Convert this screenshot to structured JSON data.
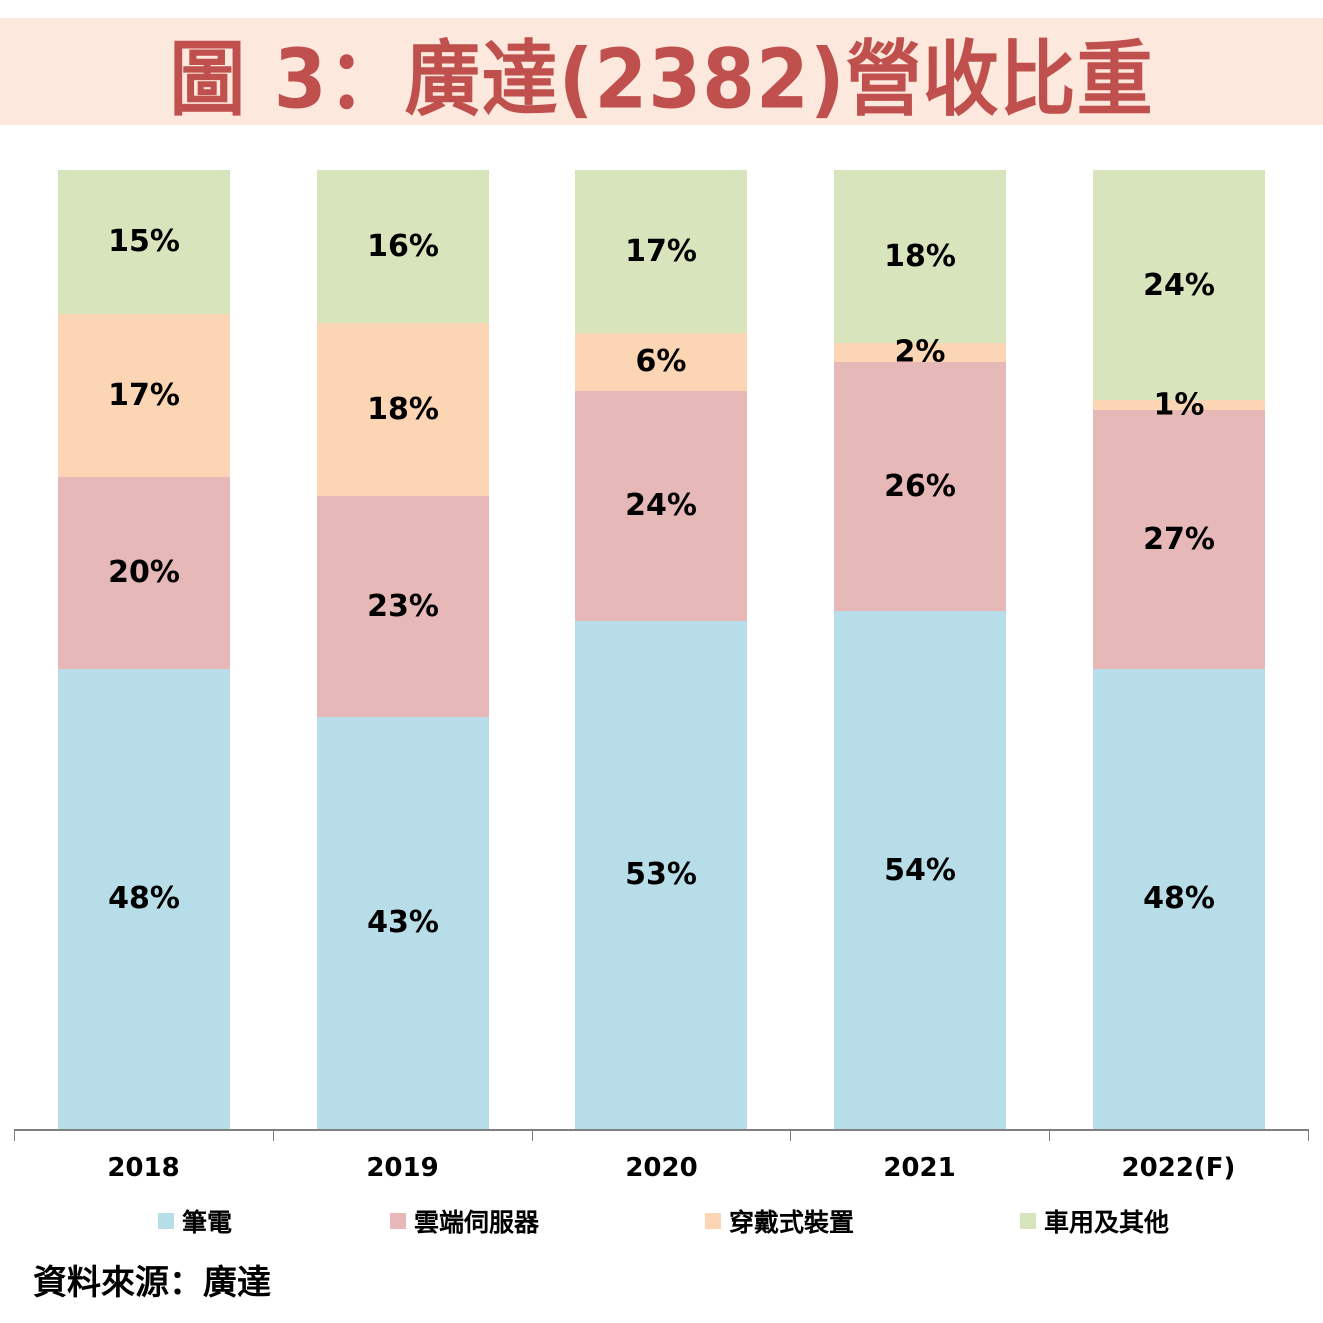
{
  "title": "圖 3：廣達(2382)營收比重",
  "source": "資料來源：廣達",
  "colors": {
    "title": "#c0504d",
    "title_band": "#fce8dc",
    "筆電": "#b7dde8",
    "雲端伺服器": "#e6b8b7",
    "穿戴式裝置": "#fcd5b4",
    "車用及其他": "#d8e4bc"
  },
  "legend": [
    {
      "label": "筆電",
      "color": "#b7dde8"
    },
    {
      "label": "雲端伺服器",
      "color": "#e6b8b7"
    },
    {
      "label": "穿戴式裝置",
      "color": "#fcd5b4"
    },
    {
      "label": "車用及其他",
      "color": "#d8e4bc"
    }
  ],
  "chart_data": {
    "type": "bar",
    "stacked": true,
    "percent_stacked": true,
    "title": "圖 3：廣達(2382)營收比重",
    "xlabel": "",
    "ylabel": "",
    "ylim": [
      0,
      100
    ],
    "grid": false,
    "legend_position": "bottom",
    "categories": [
      "2018",
      "2019",
      "2020",
      "2021",
      "2022(F)"
    ],
    "series": [
      {
        "name": "筆電",
        "color": "#b7dde8",
        "values": [
          48,
          43,
          53,
          54,
          48
        ],
        "labels": [
          "48%",
          "43%",
          "53%",
          "54%",
          "48%"
        ]
      },
      {
        "name": "雲端伺服器",
        "color": "#e6b8b7",
        "values": [
          20,
          23,
          24,
          26,
          27
        ],
        "labels": [
          "20%",
          "23%",
          "24%",
          "26%",
          "27%"
        ]
      },
      {
        "name": "穿戴式裝置",
        "color": "#fcd5b4",
        "values": [
          17,
          18,
          6,
          2,
          1
        ],
        "labels": [
          "17%",
          "18%",
          "6%",
          "2%",
          "1%"
        ]
      },
      {
        "name": "車用及其他",
        "color": "#d8e4bc",
        "values": [
          15,
          16,
          17,
          18,
          24
        ],
        "labels": [
          "15%",
          "16%",
          "17%",
          "18%",
          "24%"
        ]
      }
    ],
    "annotations": [
      "資料來源：廣達"
    ]
  }
}
